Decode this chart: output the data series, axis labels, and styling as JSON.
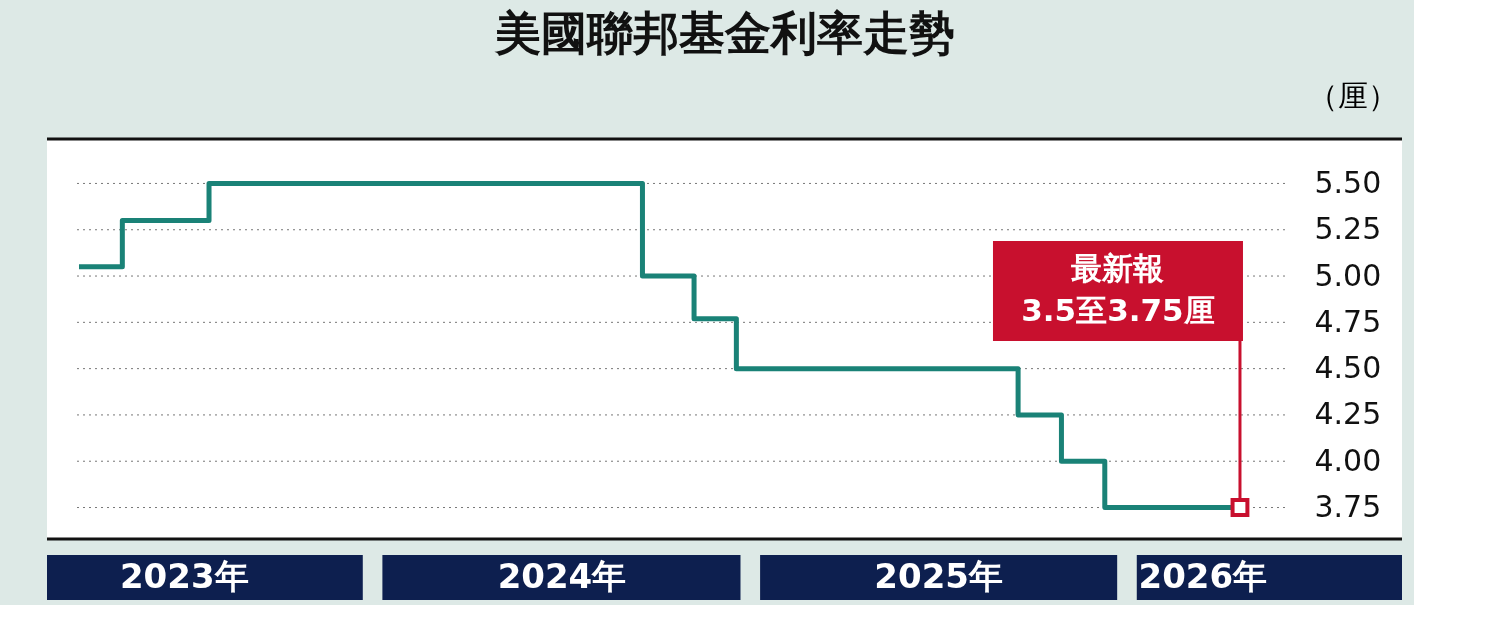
{
  "chart_data": {
    "type": "step",
    "title": "美國聯邦基金利率走勢",
    "ylabel": "（厘）",
    "x": [
      "2023-03-22",
      "2023-05-03",
      "2023-07-26",
      "2024-09-18",
      "2024-11-07",
      "2024-12-18",
      "2025-09-17",
      "2025-10-29",
      "2025-12-10",
      "2026-04-20"
    ],
    "series": [
      {
        "color": "#1a8277",
        "values": [
          5.05,
          5.3,
          5.5,
          5.0,
          4.77,
          4.5,
          4.25,
          4.0,
          3.75,
          3.75
        ]
      }
    ],
    "xlim": [
      "2023-02-19",
      "2026-09-24"
    ],
    "xticks": [
      {
        "value": "2023-07-02",
        "label": "2023年"
      },
      {
        "value": "2024-07-02",
        "label": "2024年"
      },
      {
        "value": "2025-07-02",
        "label": "2025年"
      },
      {
        "value": "2026-03-15",
        "label": "2026年"
      }
    ],
    "ylim": [
      3.58,
      5.74
    ],
    "yticks": [
      3.75,
      {
        "value": 4,
        "label": "4.00"
      },
      4.25,
      {
        "value": 4.5,
        "label": "4.50"
      },
      4.75,
      {
        "value": 5,
        "label": "5.00"
      },
      5.25,
      {
        "value": 5.5,
        "label": "5.50"
      }
    ],
    "grid": "y",
    "marker": "none",
    "line_style": "solid",
    "legend": false,
    "annotations": [
      {
        "text": "最新報\n3.5至3.75厘",
        "x": "2026-04-20",
        "y": 3.75
      }
    ]
  }
}
